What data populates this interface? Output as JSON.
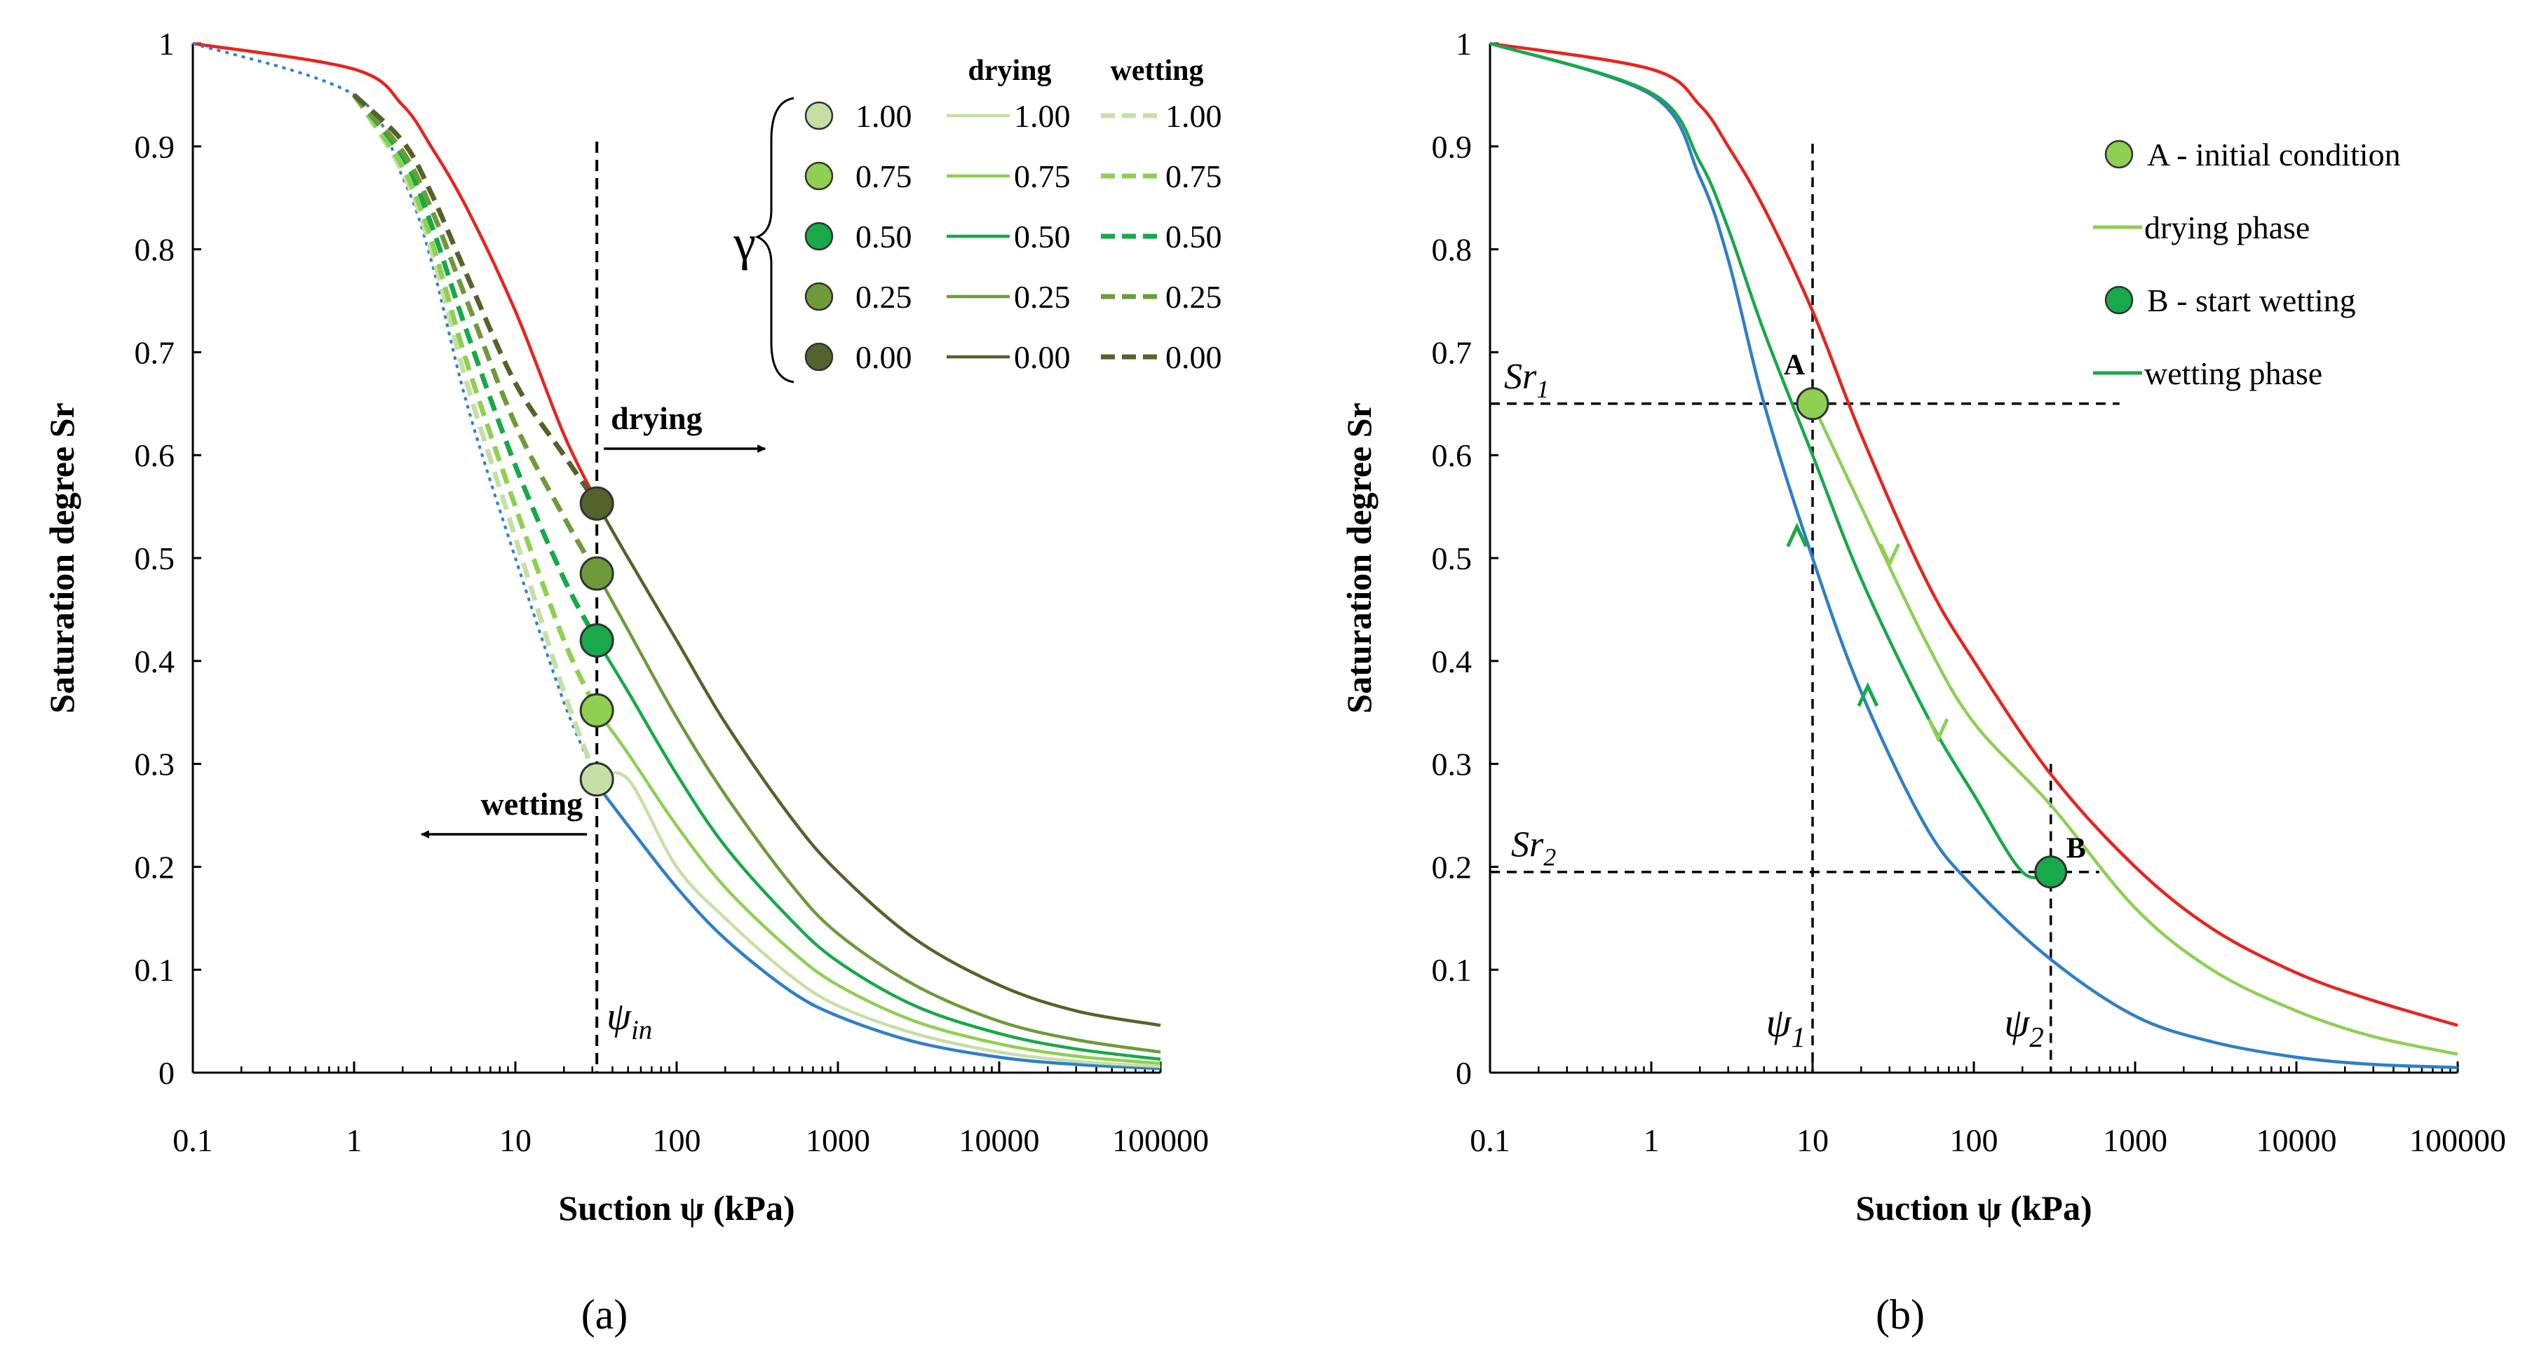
{
  "panels": {
    "a": {
      "caption": "(a)"
    },
    "b": {
      "caption": "(b)"
    }
  },
  "chart_data": [
    {
      "id": "a",
      "type": "line",
      "xscale": "log",
      "xlim": [
        0.1,
        100000
      ],
      "ylim": [
        0,
        1
      ],
      "xticks": [
        "0.1",
        "1",
        "10",
        "100",
        "1000",
        "10000",
        "100000"
      ],
      "yticks": [
        "0",
        "0.1",
        "0.2",
        "0.3",
        "0.4",
        "0.5",
        "0.6",
        "0.7",
        "0.8",
        "0.9",
        "1"
      ],
      "xlabel": "Suction ψ (kPa)",
      "ylabel": "Saturation degree Sr",
      "colors": {
        "main_drying": "#e8231f",
        "main_wetting": "#2e7fc8",
        "g100": "#c6dfa6",
        "g075": "#8fcf52",
        "g050": "#17a94a",
        "g025": "#6f9a3a",
        "g000": "#56622b"
      },
      "annotations": {
        "psi_in_symbol": "ψ",
        "psi_in_sub": "in",
        "drying_label": "drying",
        "wetting_label": "wetting",
        "gamma_symbol": "γ"
      },
      "legend": {
        "col_drying": "drying",
        "col_wetting": "wetting",
        "rows": [
          {
            "gamma": "1.00",
            "color_key": "g100"
          },
          {
            "gamma": "0.75",
            "color_key": "g075"
          },
          {
            "gamma": "0.50",
            "color_key": "g050"
          },
          {
            "gamma": "0.25",
            "color_key": "g025"
          },
          {
            "gamma": "0.00",
            "color_key": "g000"
          }
        ]
      },
      "series": [
        {
          "name": "main drying",
          "style": "solid",
          "color_key": "main_drying",
          "x": [
            0.1,
            1,
            2,
            3,
            5,
            10,
            20,
            32
          ],
          "y": [
            1.0,
            0.975,
            0.94,
            0.9,
            0.84,
            0.74,
            0.62,
            0.555
          ]
        },
        {
          "name": "main wetting",
          "style": "solid",
          "color_key": "main_wetting",
          "x": [
            32,
            50,
            100,
            200,
            500,
            1000,
            3000,
            10000,
            30000,
            100000
          ],
          "y": [
            0.28,
            0.24,
            0.18,
            0.13,
            0.08,
            0.055,
            0.03,
            0.015,
            0.008,
            0.004
          ]
        },
        {
          "name": "scanning wetting base",
          "style": "dotted",
          "color_key": "main_wetting",
          "x": [
            0.1,
            1,
            2,
            3,
            5,
            10,
            20,
            32
          ],
          "y": [
            1.0,
            0.95,
            0.87,
            0.79,
            0.65,
            0.5,
            0.36,
            0.285
          ]
        },
        {
          "name": "wetting γ=1.00",
          "style": "dashed",
          "color_key": "g100",
          "x": [
            1,
            2,
            3,
            5,
            10,
            20,
            32
          ],
          "y": [
            0.95,
            0.875,
            0.8,
            0.67,
            0.52,
            0.37,
            0.285
          ]
        },
        {
          "name": "wetting γ=0.75",
          "style": "dashed",
          "color_key": "g075",
          "x": [
            1,
            2,
            3,
            5,
            10,
            20,
            32
          ],
          "y": [
            0.95,
            0.88,
            0.81,
            0.69,
            0.55,
            0.42,
            0.352
          ]
        },
        {
          "name": "wetting γ=0.50",
          "style": "dashed",
          "color_key": "g050",
          "x": [
            1,
            2,
            3,
            5,
            10,
            20,
            32
          ],
          "y": [
            0.95,
            0.89,
            0.825,
            0.72,
            0.59,
            0.48,
            0.42
          ]
        },
        {
          "name": "wetting γ=0.25",
          "style": "dashed",
          "color_key": "g025",
          "x": [
            1,
            2,
            3,
            5,
            10,
            20,
            32
          ],
          "y": [
            0.95,
            0.895,
            0.84,
            0.75,
            0.63,
            0.54,
            0.485
          ]
        },
        {
          "name": "wetting γ=0.00",
          "style": "dashed",
          "color_key": "g000",
          "x": [
            1,
            2,
            3,
            5,
            10,
            20,
            32
          ],
          "y": [
            0.95,
            0.905,
            0.855,
            0.775,
            0.67,
            0.6,
            0.553
          ]
        },
        {
          "name": "drying γ=1.00",
          "style": "solid",
          "color_key": "g100",
          "x": [
            32,
            50,
            100,
            200,
            500,
            1000,
            3000,
            10000,
            30000,
            100000
          ],
          "y": [
            0.285,
            0.285,
            0.2,
            0.15,
            0.095,
            0.065,
            0.038,
            0.02,
            0.011,
            0.006
          ]
        },
        {
          "name": "drying γ=0.75",
          "style": "solid",
          "color_key": "g075",
          "x": [
            32,
            50,
            100,
            200,
            500,
            1000,
            3000,
            10000,
            30000,
            100000
          ],
          "y": [
            0.352,
            0.31,
            0.24,
            0.18,
            0.12,
            0.085,
            0.05,
            0.028,
            0.016,
            0.009
          ]
        },
        {
          "name": "drying γ=0.50",
          "style": "solid",
          "color_key": "g050",
          "x": [
            32,
            50,
            100,
            200,
            500,
            1000,
            3000,
            10000,
            30000,
            100000
          ],
          "y": [
            0.42,
            0.37,
            0.29,
            0.22,
            0.15,
            0.108,
            0.065,
            0.038,
            0.023,
            0.013
          ]
        },
        {
          "name": "drying γ=0.25",
          "style": "solid",
          "color_key": "g025",
          "x": [
            32,
            50,
            100,
            200,
            500,
            1000,
            3000,
            10000,
            30000,
            100000
          ],
          "y": [
            0.485,
            0.43,
            0.345,
            0.27,
            0.185,
            0.135,
            0.085,
            0.05,
            0.032,
            0.02
          ]
        },
        {
          "name": "drying γ=0.00",
          "style": "solid",
          "color_key": "g000",
          "x": [
            32,
            50,
            100,
            200,
            500,
            1000,
            3000,
            10000,
            30000,
            100000
          ],
          "y": [
            0.553,
            0.5,
            0.42,
            0.34,
            0.25,
            0.195,
            0.13,
            0.085,
            0.06,
            0.046
          ]
        }
      ],
      "points": [
        {
          "x": 32,
          "y": 0.553,
          "color_key": "g000"
        },
        {
          "x": 32,
          "y": 0.485,
          "color_key": "g025"
        },
        {
          "x": 32,
          "y": 0.42,
          "color_key": "g050"
        },
        {
          "x": 32,
          "y": 0.352,
          "color_key": "g075"
        },
        {
          "x": 32,
          "y": 0.285,
          "color_key": "g100"
        }
      ],
      "psi_in": 32
    },
    {
      "id": "b",
      "type": "line",
      "xscale": "log",
      "xlim": [
        0.1,
        100000
      ],
      "ylim": [
        0,
        1
      ],
      "xticks": [
        "0.1",
        "1",
        "10",
        "100",
        "1000",
        "10000",
        "100000"
      ],
      "yticks": [
        "0",
        "0.1",
        "0.2",
        "0.3",
        "0.4",
        "0.5",
        "0.6",
        "0.7",
        "0.8",
        "0.9",
        "1"
      ],
      "xlabel": "Suction ψ (kPa)",
      "ylabel": "Saturation degree Sr",
      "colors": {
        "main_drying": "#e8231f",
        "main_wetting": "#2e7fc8",
        "drying_phase": "#8fcf52",
        "wetting_phase": "#17a94a"
      },
      "annotations": {
        "sr1_main": "Sr",
        "sr1_sub": "1",
        "sr2_main": "Sr",
        "sr2_sub": "2",
        "psi1_main": "ψ",
        "psi1_sub": "1",
        "psi2_main": "ψ",
        "psi2_sub": "2",
        "point_a": "A",
        "point_b": "B"
      },
      "legend": {
        "items": [
          {
            "label": "A - initial condition",
            "kind": "marker",
            "color_key": "drying_phase"
          },
          {
            "label": "drying phase",
            "kind": "line",
            "color_key": "drying_phase"
          },
          {
            "label": "B - start wetting",
            "kind": "marker",
            "color_key": "wetting_phase"
          },
          {
            "label": "wetting phase",
            "kind": "line",
            "color_key": "wetting_phase"
          }
        ]
      },
      "series": [
        {
          "name": "main drying",
          "style": "solid",
          "color_key": "main_drying",
          "x": [
            0.1,
            1,
            2,
            3,
            5,
            10,
            20,
            50,
            100,
            300,
            1000,
            3000,
            10000,
            30000,
            100000
          ],
          "y": [
            1.0,
            0.975,
            0.94,
            0.9,
            0.84,
            0.74,
            0.62,
            0.48,
            0.4,
            0.29,
            0.2,
            0.14,
            0.097,
            0.07,
            0.046
          ]
        },
        {
          "name": "main wetting",
          "style": "solid",
          "color_key": "main_wetting",
          "x": [
            0.1,
            1,
            2,
            3,
            5,
            10,
            20,
            50,
            100,
            300,
            1000,
            3000,
            10000,
            30000,
            100000
          ],
          "y": [
            1.0,
            0.95,
            0.87,
            0.79,
            0.65,
            0.5,
            0.37,
            0.24,
            0.18,
            0.11,
            0.055,
            0.03,
            0.015,
            0.008,
            0.005
          ]
        },
        {
          "name": "wetting phase",
          "style": "solid",
          "color_key": "wetting_phase",
          "x": [
            0.1,
            1,
            2,
            3,
            5,
            10,
            20,
            50,
            100,
            200,
            300
          ],
          "y": [
            1.0,
            0.952,
            0.885,
            0.82,
            0.72,
            0.6,
            0.48,
            0.35,
            0.27,
            0.195,
            0.195
          ]
        },
        {
          "name": "drying phase",
          "style": "solid",
          "color_key": "drying_phase",
          "x": [
            10,
            20,
            50,
            100,
            300,
            1000,
            3000,
            10000,
            30000,
            100000
          ],
          "y": [
            0.65,
            0.55,
            0.42,
            0.34,
            0.26,
            0.16,
            0.1,
            0.06,
            0.035,
            0.018
          ]
        }
      ],
      "points": [
        {
          "x": 10,
          "y": 0.65,
          "color_key": "drying_phase"
        },
        {
          "x": 300,
          "y": 0.195,
          "color_key": "wetting_phase"
        }
      ],
      "arrows": [
        {
          "x": 30,
          "y": 0.5,
          "dir": "down",
          "color_key": "drying_phase"
        },
        {
          "x": 60,
          "y": 0.33,
          "dir": "down",
          "color_key": "drying_phase"
        },
        {
          "x": 8,
          "y": 0.525,
          "dir": "up",
          "color_key": "wetting_phase"
        },
        {
          "x": 22,
          "y": 0.37,
          "dir": "up",
          "color_key": "wetting_phase"
        }
      ],
      "refs": {
        "psi1": 10,
        "psi2": 300,
        "sr1": 0.65,
        "sr2": 0.195
      }
    }
  ]
}
